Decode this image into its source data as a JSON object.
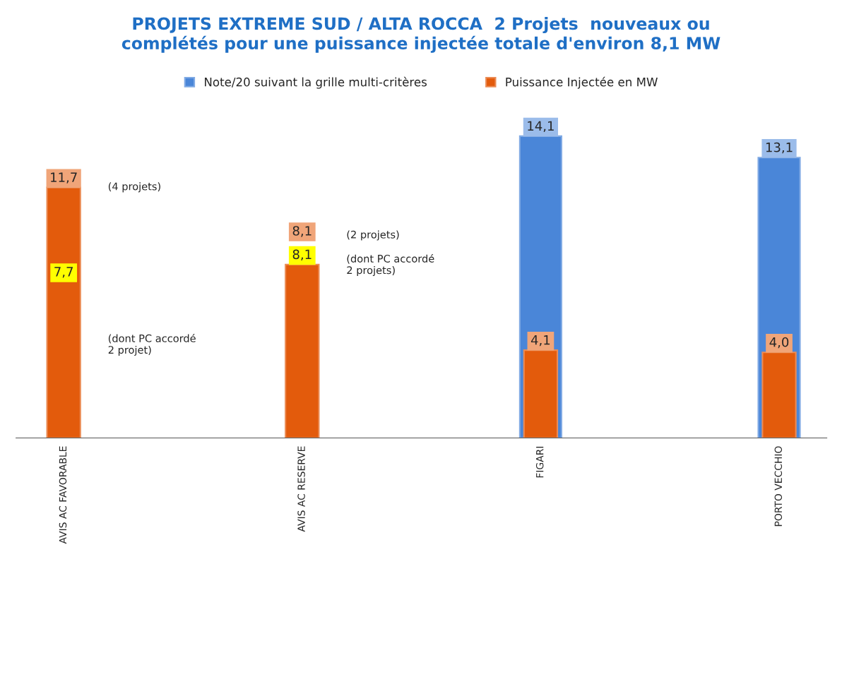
{
  "chart_data": {
    "type": "bar",
    "title": "PROJETS EXTREME SUD / ALTA ROCCA  2 Projets  nouveaux ou\ncomplétés pour une puissance injectée totale d'environ 8,1 MW",
    "categories": [
      "AVIS AC FAVORABLE",
      "AVIS AC RESERVE",
      "FIGARI",
      "PORTO VECCHIO"
    ],
    "series": [
      {
        "name": "Note/20 suivant la grille multi-critères",
        "color": "#4a86d8",
        "values": [
          null,
          null,
          14.1,
          13.1
        ],
        "value_labels": [
          null,
          null,
          "14,1",
          "13,1"
        ]
      },
      {
        "name": "Puissance Injectée en MW",
        "color": "#e35b0c",
        "values": [
          11.7,
          8.1,
          4.1,
          4.0
        ],
        "value_labels": [
          "11,7",
          "8,1",
          "4,1",
          "4,0"
        ]
      }
    ],
    "annotations": [
      "7,7",
      "8,1",
      "(4 projets)",
      "(dont PC accordé\n2 projet)",
      "(2 projets)",
      "(dont PC accordé\n2 projets)"
    ],
    "legend": "top",
    "grid": false
  }
}
